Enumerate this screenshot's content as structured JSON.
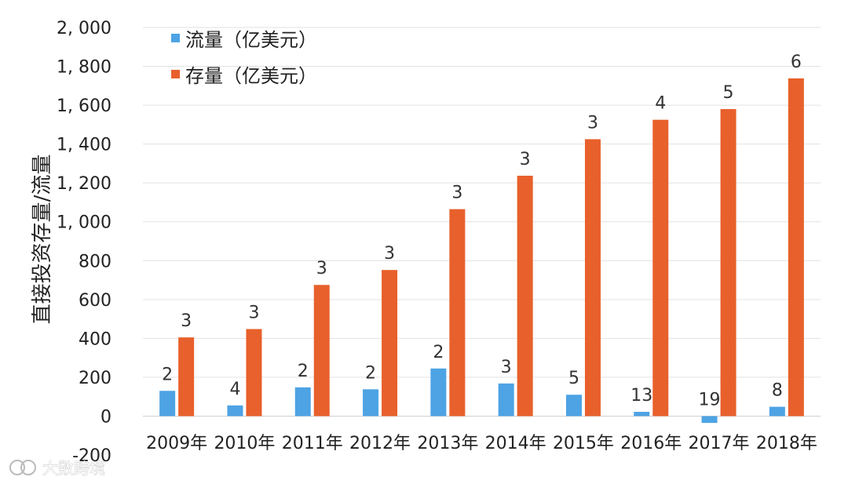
{
  "chart_data": {
    "type": "bar",
    "ylabel": "直接投资存量/流量",
    "ylim": [
      -200,
      2000
    ],
    "yticks": [
      -200,
      0,
      200,
      400,
      600,
      800,
      1000,
      1200,
      1400,
      1600,
      1800,
      2000
    ],
    "ytick_labels": [
      "-200",
      "0",
      "200",
      "400",
      "600",
      "800",
      "1, 000",
      "1, 200",
      "1, 400",
      "1, 600",
      "1, 800",
      "2, 000"
    ],
    "categories": [
      "2009年",
      "2010年",
      "2011年",
      "2012年",
      "2013年",
      "2014年",
      "2015年",
      "2016年",
      "2017年",
      "2018年"
    ],
    "series": [
      {
        "name": "流量（亿美元）",
        "color": "#4da3e4",
        "values": [
          130,
          55,
          148,
          138,
          245,
          168,
          110,
          22,
          -35,
          48
        ],
        "data_labels": [
          "2",
          "4",
          "2",
          "2",
          "2",
          "3",
          "5",
          "13",
          "19",
          "8"
        ]
      },
      {
        "name": "存量（亿美元）",
        "color": "#e8602c",
        "values": [
          405,
          448,
          675,
          752,
          1065,
          1237,
          1425,
          1525,
          1580,
          1738
        ],
        "data_labels": [
          "3",
          "3",
          "3",
          "3",
          "3",
          "3",
          "3",
          "4",
          "5",
          "6"
        ]
      }
    ],
    "grid": true,
    "legend": "top-left"
  },
  "watermark": {
    "text": "大数跨境",
    "icon": "brand-logo-icon"
  }
}
